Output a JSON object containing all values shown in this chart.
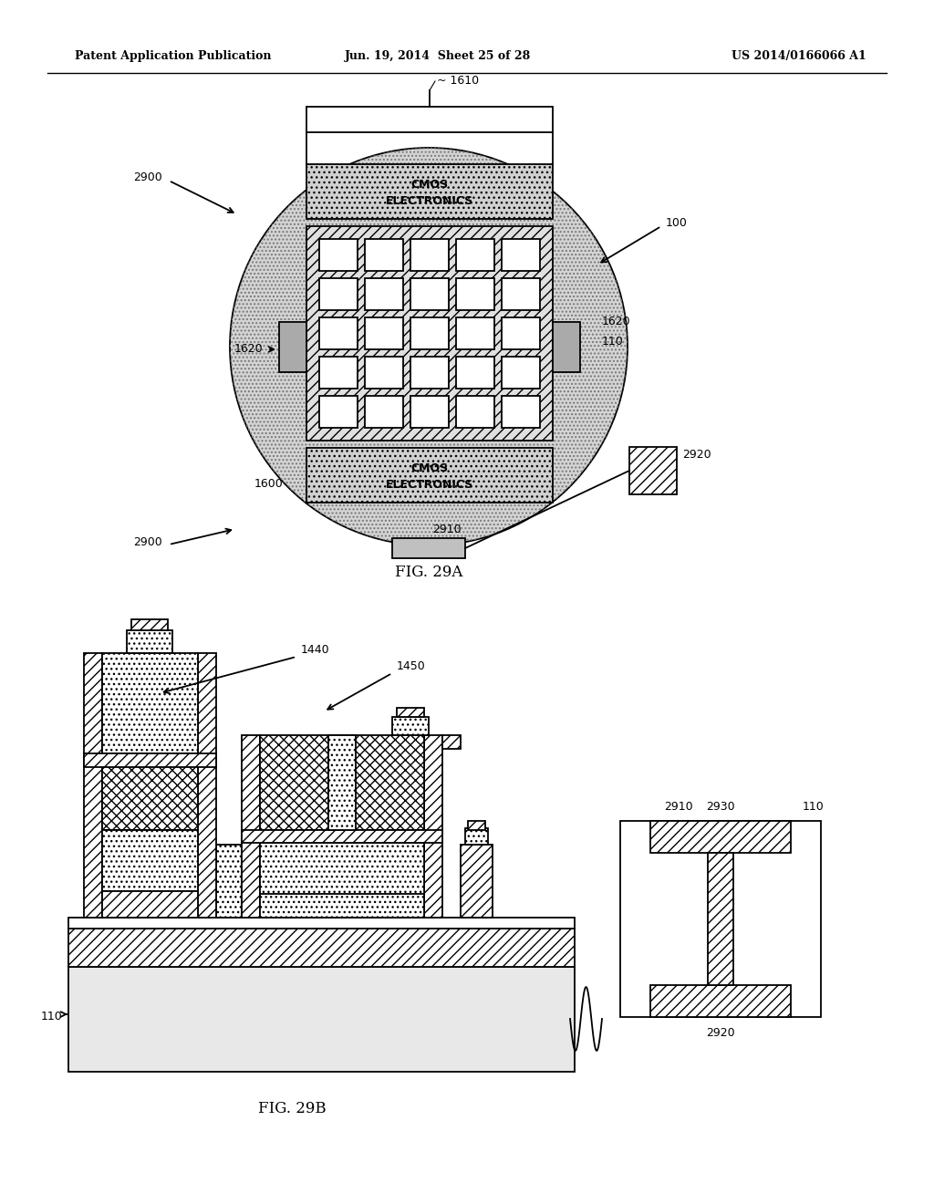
{
  "header_left": "Patent Application Publication",
  "header_mid": "Jun. 19, 2014  Sheet 25 of 28",
  "header_right": "US 2014/0166066 A1",
  "fig_29a_label": "FIG. 29A",
  "fig_29b_label": "FIG. 29B",
  "background_color": "#ffffff",
  "line_color": "#000000"
}
